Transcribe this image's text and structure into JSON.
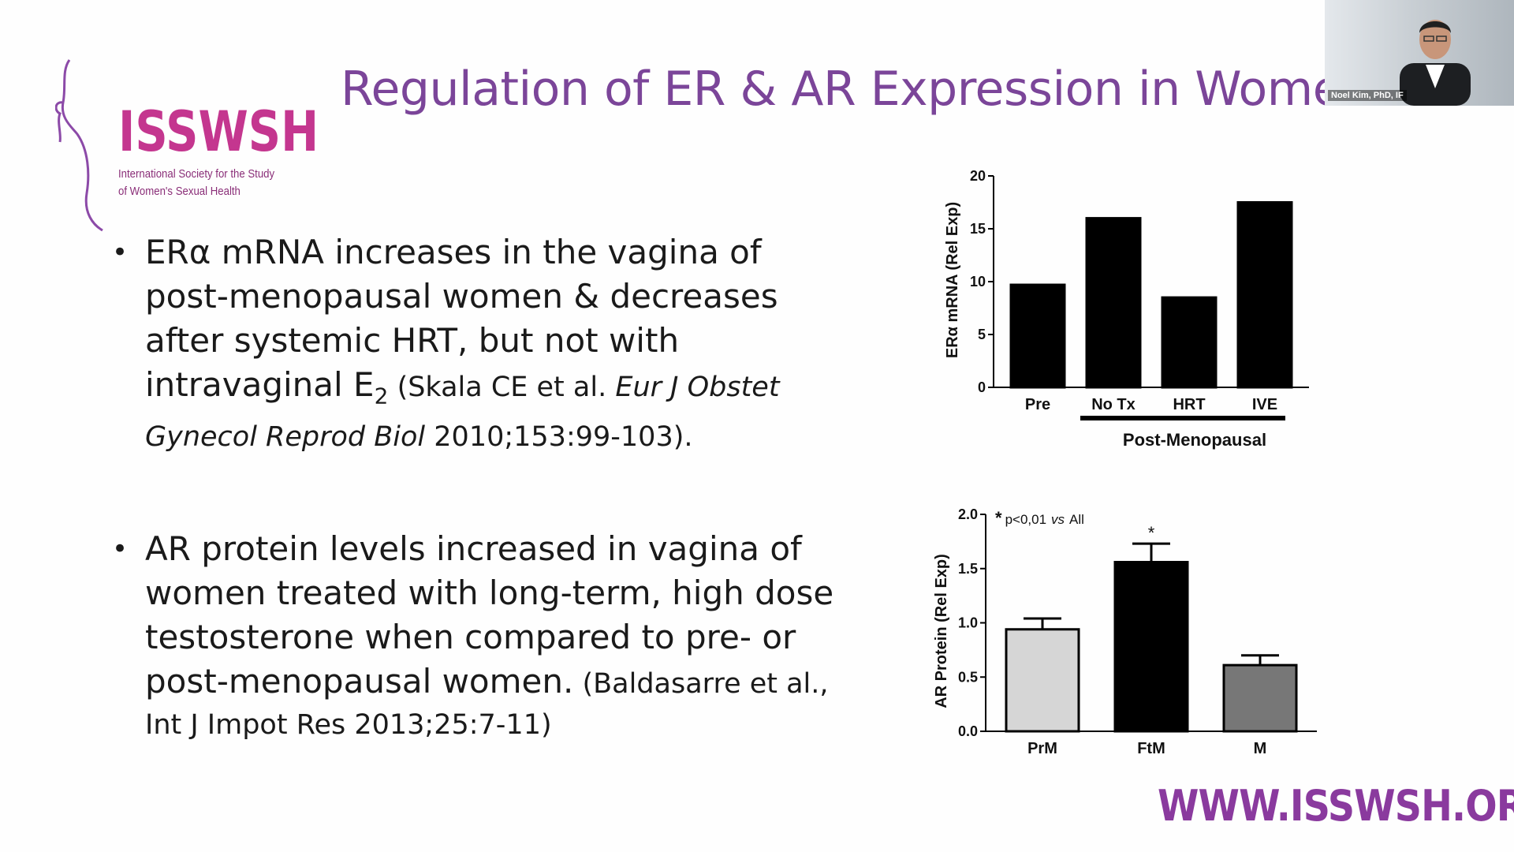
{
  "slide": {
    "title": "Regulation of ER & AR Expression in Women",
    "logo": {
      "name": "ISSWSH",
      "subtitle_line1": "International Society for the Study",
      "subtitle_line2": "of Women's Sexual Health"
    },
    "bullets": [
      {
        "marker": "•",
        "line1": "ERα mRNA increases in the vagina of",
        "line2": "post-menopausal women & decreases",
        "line3": "after systemic HRT, but not with",
        "line4_main": "intravaginal E",
        "line4_sub": "2",
        "line4_cite": " (Skala CE et al. ",
        "line4_journal": "Eur J Obstet",
        "line5_journal": "Gynecol Reprod Biol",
        "line5_cite": " 2010;153:99-103)."
      },
      {
        "marker": "•",
        "line1": "AR protein levels increased in vagina of",
        "line2": "women treated with long-term, high dose",
        "line3": "testosterone when compared to pre- or",
        "line4_main": "post-menopausal women.",
        "line4_cite": " (Baldasarre et al.,",
        "line5_cite": "Int J Impot Res 2013;25:7-11)"
      }
    ],
    "footer_url": "WWW.ISSWSH.ORG"
  },
  "video_tile": {
    "name": "Noel Kim, PhD, IF"
  },
  "chart_data": [
    {
      "type": "bar",
      "ylabel": "ERα mRNA (Rel Exp)",
      "categories": [
        "Pre",
        "No Tx",
        "HRT",
        "IVE"
      ],
      "values": [
        9.7,
        16.0,
        8.5,
        17.5
      ],
      "ylim": [
        0,
        20
      ],
      "yticks": [
        "0",
        "5",
        "10",
        "15",
        "20"
      ],
      "group_label": "Post-Menopausal",
      "colors": [
        "#000000",
        "#000000",
        "#000000",
        "#000000"
      ]
    },
    {
      "type": "bar",
      "ylabel": "AR Protein (Rel Exp)",
      "categories": [
        "PrM",
        "FtM",
        "M"
      ],
      "values": [
        0.94,
        1.56,
        0.61
      ],
      "errors": [
        0.1,
        0.17,
        0.09
      ],
      "ylim": [
        0,
        2.0
      ],
      "yticks": [
        "0.0",
        "0.5",
        "1.0",
        "1.5",
        "2.0"
      ],
      "annotation_star": "*",
      "annotation_text": "p<0,01",
      "annotation_vs": "vs",
      "annotation_all": "All",
      "significance_marker": "*",
      "colors": [
        "#d6d6d6",
        "#000000",
        "#777777"
      ]
    }
  ]
}
